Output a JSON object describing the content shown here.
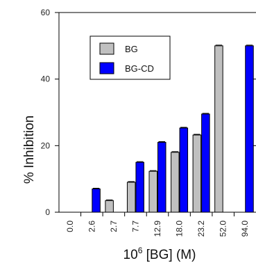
{
  "chart_data": {
    "type": "bar",
    "xlabel_base": "10",
    "xlabel_exp": "6",
    "xlabel_rest": " [BG] (M)",
    "ylabel": "% Inhibition",
    "ylim": [
      0,
      60
    ],
    "yticks": [
      0,
      20,
      40,
      60
    ],
    "categories": [
      "0.0",
      "2.6",
      "2.7",
      "7.7",
      "12.9",
      "18.0",
      "23.2",
      "52.0",
      "94.0"
    ],
    "series": [
      {
        "name": "BG",
        "color": "#c0c0c0",
        "values": [
          null,
          null,
          3.5,
          9,
          12.3,
          18,
          23.2,
          50,
          null
        ]
      },
      {
        "name": "BG-CD",
        "color": "#0000ff",
        "values": [
          null,
          7,
          null,
          15,
          21,
          25.3,
          29.5,
          null,
          50
        ]
      }
    ],
    "legend_position": "top-left"
  }
}
